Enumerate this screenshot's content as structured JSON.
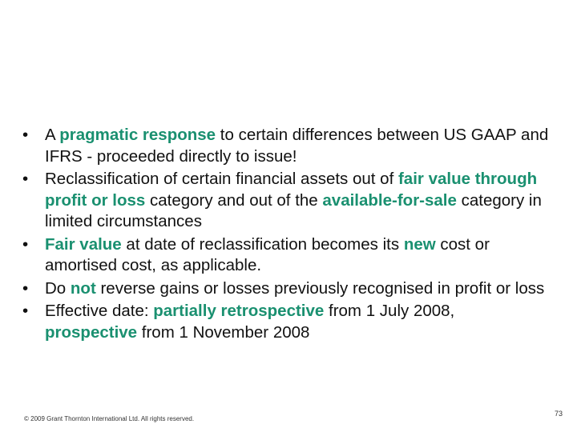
{
  "accent_color": "#1a9070",
  "bullets": [
    {
      "segments": [
        {
          "text": "A ",
          "em": false
        },
        {
          "text": "pragmatic response",
          "em": true
        },
        {
          "text": " to certain differences between US GAAP and IFRS - proceeded directly to issue!",
          "em": false
        }
      ]
    },
    {
      "segments": [
        {
          "text": "Reclassification of certain financial assets out of ",
          "em": false
        },
        {
          "text": "fair value through profit or loss",
          "em": true
        },
        {
          "text": " category and out of the ",
          "em": false
        },
        {
          "text": "available-for-sale",
          "em": true
        },
        {
          "text": " category in limited circumstances",
          "em": false
        }
      ]
    },
    {
      "segments": [
        {
          "text": "Fair value",
          "em": true
        },
        {
          "text": " at date of reclassification becomes its ",
          "em": false
        },
        {
          "text": "new",
          "em": true
        },
        {
          "text": " cost or amortised cost, as applicable.",
          "em": false
        }
      ]
    },
    {
      "segments": [
        {
          "text": "Do ",
          "em": false
        },
        {
          "text": "not",
          "em": true
        },
        {
          "text": " reverse gains or losses previously recognised in profit or loss",
          "em": false
        }
      ]
    },
    {
      "segments": [
        {
          "text": "Effective date: ",
          "em": false
        },
        {
          "text": "partially retrospective",
          "em": true
        },
        {
          "text": " from 1 July 2008, ",
          "em": false
        },
        {
          "text": "prospective",
          "em": true
        },
        {
          "text": " from 1 November 2008",
          "em": false
        }
      ]
    }
  ],
  "footer": {
    "copyright": "© 2009 Grant Thornton International Ltd. All rights reserved.",
    "page_number": "73"
  }
}
